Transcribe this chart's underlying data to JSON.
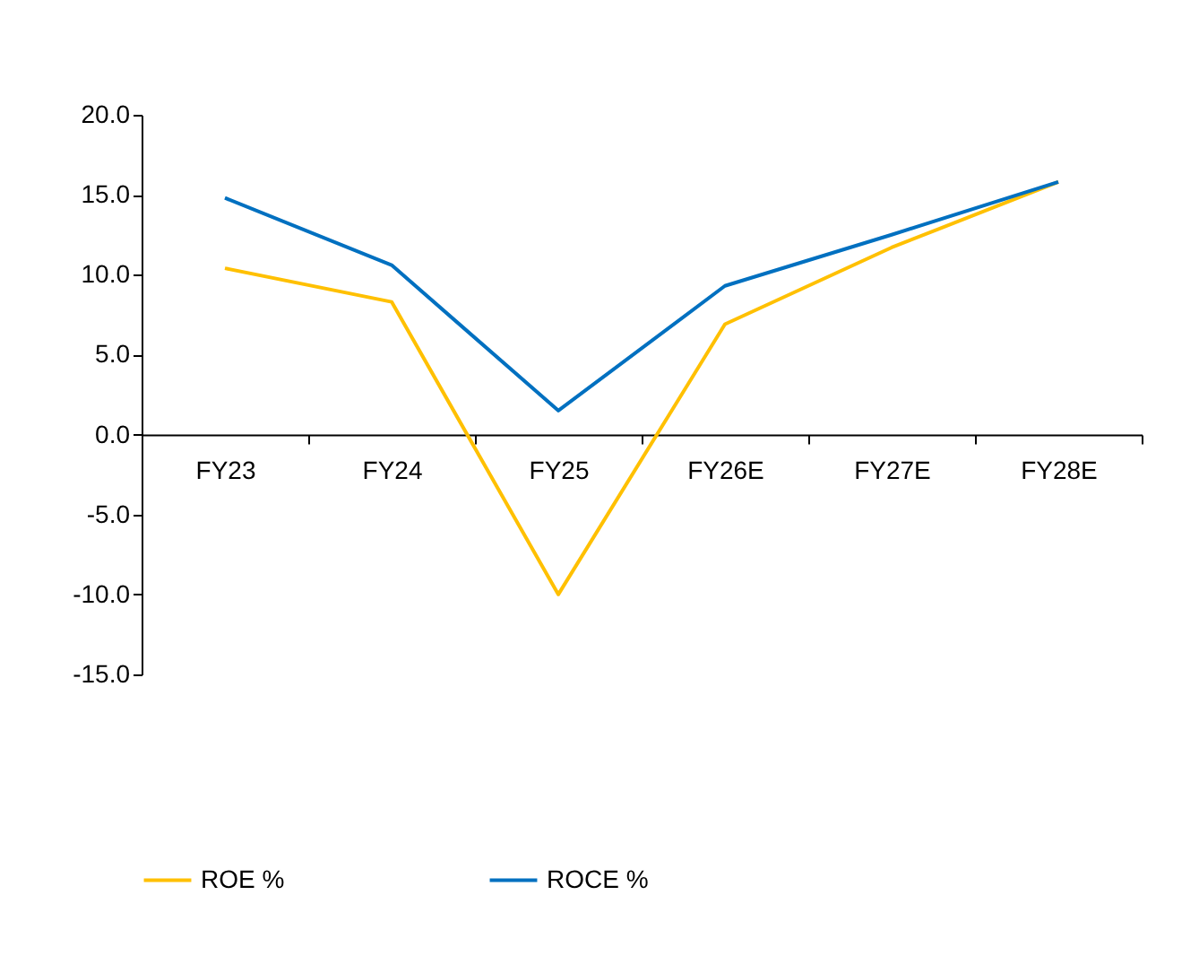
{
  "chart_data": {
    "type": "line",
    "categories": [
      "FY23",
      "FY24",
      "FY25",
      "FY26E",
      "FY27E",
      "FY28E"
    ],
    "series": [
      {
        "name": "ROE %",
        "color": "#ffc000",
        "values": [
          10.4,
          8.3,
          -10.0,
          6.9,
          11.7,
          15.8
        ]
      },
      {
        "name": "ROCE %",
        "color": "#0070c0",
        "values": [
          14.8,
          10.6,
          1.5,
          9.3,
          12.5,
          15.8
        ]
      }
    ],
    "ylim": [
      -15,
      20
    ],
    "yticks": [
      {
        "value": -15,
        "label": "-15.0"
      },
      {
        "value": -10,
        "label": "-10.0"
      },
      {
        "value": -5,
        "label": "-5.0"
      },
      {
        "value": 0,
        "label": "0.0"
      },
      {
        "value": 5,
        "label": "5.0"
      },
      {
        "value": 10,
        "label": "10.0"
      },
      {
        "value": 15,
        "label": "15.0"
      },
      {
        "value": 20,
        "label": "20.0"
      }
    ],
    "grid": false,
    "legend": "bottom",
    "marker": "none",
    "line_style": "solid"
  }
}
